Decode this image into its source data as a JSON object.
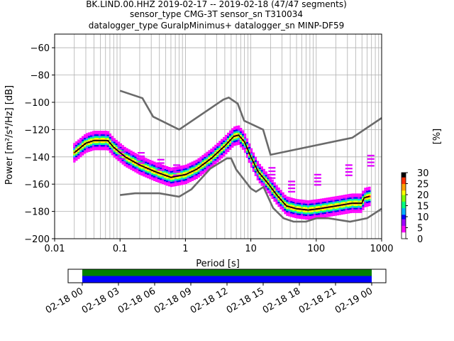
{
  "title": {
    "line1": "BK.LIND.00.HHZ   2019-02-17 -- 2019-02-18  (47/47 segments)",
    "line2": "sensor_type CMG-3T sensor_sn T310034",
    "line3": "datalogger_type GuralpMinimus+ datalogger_sn MINP-DF59"
  },
  "chart_data": {
    "type": "heatmap",
    "xlabel": "Period [s]",
    "ylabel": "Power [m²/s⁴/Hz] [dB]",
    "xscale": "log",
    "xlim": [
      0.01,
      1000
    ],
    "ylim": [
      -200,
      -50
    ],
    "xticks": [
      0.01,
      0.1,
      1,
      10,
      100,
      1000
    ],
    "xtick_labels": [
      "0.01",
      "0.1",
      "1",
      "10",
      "100",
      "1000"
    ],
    "yticks": [
      -200,
      -180,
      -160,
      -140,
      -120,
      -100,
      -80,
      -60
    ],
    "ytick_labels": [
      "−200",
      "−180",
      "−160",
      "−140",
      "−120",
      "−100",
      "−80",
      "−60"
    ],
    "grid": true,
    "colorbar": {
      "label": "[%]",
      "range": [
        0,
        30
      ],
      "ticks": [
        "0",
        "5",
        "10",
        "15",
        "20",
        "25",
        "30"
      ]
    },
    "noise_models": [
      {
        "name": "high",
        "points": [
          [
            0.1,
            -91.5
          ],
          [
            0.22,
            -97
          ],
          [
            0.32,
            -110.5
          ],
          [
            0.8,
            -120
          ],
          [
            3.8,
            -98
          ],
          [
            4.6,
            -96.5
          ],
          [
            6.3,
            -101
          ],
          [
            7.9,
            -113.5
          ],
          [
            15.4,
            -120
          ],
          [
            20,
            -138.5
          ],
          [
            354.8,
            -126
          ],
          [
            1000,
            -111.5
          ]
        ]
      },
      {
        "name": "low",
        "points": [
          [
            0.1,
            -168
          ],
          [
            0.17,
            -166.7
          ],
          [
            0.4,
            -166.7
          ],
          [
            0.8,
            -169.2
          ],
          [
            1.24,
            -163.7
          ],
          [
            2.4,
            -148.6
          ],
          [
            4.3,
            -141.1
          ],
          [
            5,
            -141.1
          ],
          [
            6,
            -149.4
          ],
          [
            10,
            -163.2
          ],
          [
            12,
            -165.5
          ],
          [
            15.6,
            -162.1
          ],
          [
            21.9,
            -177.5
          ],
          [
            31.6,
            -185
          ],
          [
            45,
            -187.5
          ],
          [
            70,
            -187.5
          ],
          [
            101,
            -185
          ],
          [
            154,
            -185
          ],
          [
            328,
            -187.5
          ],
          [
            600,
            -185
          ],
          [
            1000,
            -178
          ]
        ]
      }
    ],
    "mean_curve": {
      "points": [
        [
          0.02,
          -137
        ],
        [
          0.03,
          -130
        ],
        [
          0.04,
          -128
        ],
        [
          0.065,
          -128
        ],
        [
          0.08,
          -133
        ],
        [
          0.12,
          -140
        ],
        [
          0.2,
          -146
        ],
        [
          0.35,
          -151
        ],
        [
          0.6,
          -155
        ],
        [
          1,
          -153
        ],
        [
          1.5,
          -149
        ],
        [
          2.5,
          -141
        ],
        [
          4,
          -132
        ],
        [
          5.5,
          -125
        ],
        [
          6.5,
          -124
        ],
        [
          8,
          -129
        ],
        [
          10,
          -140
        ],
        [
          13,
          -151
        ],
        [
          18,
          -159
        ],
        [
          25,
          -168
        ],
        [
          35,
          -176
        ],
        [
          50,
          -178
        ],
        [
          75,
          -179
        ],
        [
          110,
          -178
        ],
        [
          200,
          -176
        ],
        [
          350,
          -174
        ],
        [
          500,
          -174
        ],
        [
          540,
          -170
        ],
        [
          650,
          -169
        ]
      ]
    },
    "timeline": {
      "tick_labels": [
        "02-18 00",
        "02-18 03",
        "02-18 06",
        "02-18 09",
        "02-18 12",
        "02-18 15",
        "02-18 18",
        "02-18 21",
        "02-19 00"
      ],
      "start": "02-18 00",
      "end": "02-19 00",
      "rows": [
        {
          "name": "top",
          "color": "#008000"
        },
        {
          "name": "bottom",
          "color": "#0000ff"
        }
      ]
    }
  },
  "colors": {
    "noise_model": "#6a6a6a",
    "mean": "#000000",
    "grid": "#b0b0b0"
  }
}
